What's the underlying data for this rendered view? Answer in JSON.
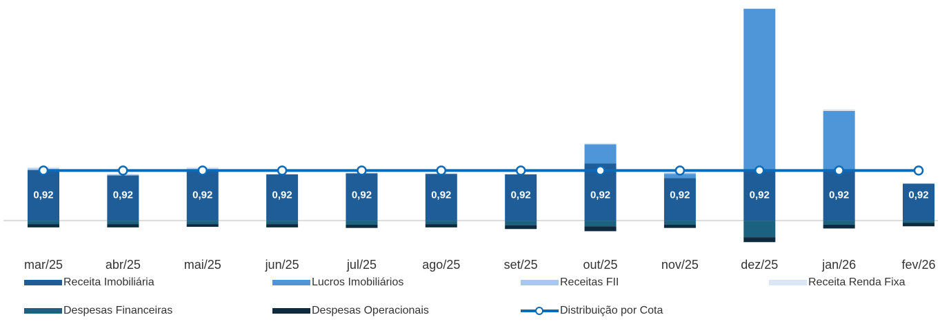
{
  "chart_data": {
    "type": "bar",
    "stacked": true,
    "categories": [
      "mar/25",
      "abr/25",
      "mai/25",
      "jun/25",
      "jul/25",
      "ago/25",
      "set/25",
      "out/25",
      "nov/25",
      "dez/25",
      "jan/26",
      "fev/26"
    ],
    "ylim": [
      -0.5,
      4.04
    ],
    "series": [
      {
        "name": "Receita Imobiliária",
        "color": "#1f5d99",
        "values": [
          0.93,
          0.83,
          0.93,
          0.85,
          0.87,
          0.86,
          0.85,
          1.05,
          0.78,
          0.93,
          0.91,
          0.68
        ]
      },
      {
        "name": "Lucros Imobiliários",
        "color": "#4e96d8",
        "values": [
          0,
          0,
          0,
          0,
          0,
          0,
          0,
          0.35,
          0.08,
          2.95,
          1.1,
          0
        ]
      },
      {
        "name": "Receitas FII",
        "color": "#a8c8ec",
        "values": [
          0.03,
          0.02,
          0.03,
          0,
          0,
          0,
          0,
          0,
          0.02,
          0,
          0,
          0
        ]
      },
      {
        "name": "Receita Renda Fixa",
        "color": "#d9e6f5",
        "values": [
          0.02,
          0.01,
          0.02,
          0.01,
          0.01,
          0.01,
          0.01,
          0.02,
          0,
          0,
          0.03,
          0.01
        ]
      },
      {
        "name": "Despesas Financeiras",
        "color": "#1b6280",
        "values": [
          -0.06,
          -0.06,
          -0.06,
          -0.06,
          -0.07,
          -0.06,
          -0.08,
          -0.1,
          -0.07,
          -0.3,
          -0.07,
          -0.04
        ]
      },
      {
        "name": "Despesas Operacionais",
        "color": "#0e2a3f",
        "values": [
          -0.06,
          -0.06,
          -0.05,
          -0.06,
          -0.06,
          -0.06,
          -0.07,
          -0.09,
          -0.06,
          -0.09,
          -0.07,
          -0.06
        ]
      },
      {
        "name": "Distribuição por Cota",
        "type": "line",
        "color": "#0b6bb8",
        "values": [
          0.92,
          0.92,
          0.92,
          0.92,
          0.92,
          0.92,
          0.92,
          0.92,
          0.92,
          0.92,
          0.92,
          0.92
        ],
        "value_labels": [
          "0,92",
          "0,92",
          "0,92",
          "0,92",
          "0,92",
          "0,92",
          "0,92",
          "0,92",
          "0,92",
          "0,92",
          "0,92",
          "0,92"
        ]
      }
    ]
  }
}
